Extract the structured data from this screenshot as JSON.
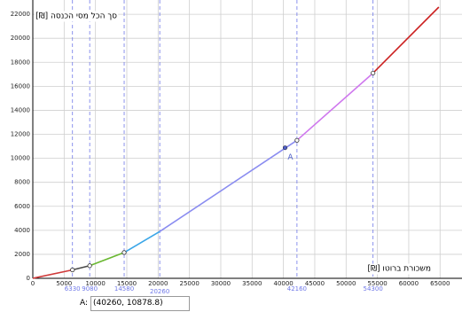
{
  "chart_data": {
    "type": "line",
    "ylabel": "סך הכל מסי הכנסה [₪]",
    "xlabel": "משכורת ברוטו [₪]",
    "xlim": [
      0,
      68500
    ],
    "ylim": [
      0,
      22600
    ],
    "xticks": [
      0,
      5000,
      10000,
      15000,
      20000,
      25000,
      30000,
      35000,
      40000,
      45000,
      50000,
      55000,
      60000,
      65000
    ],
    "yticks": [
      0,
      2000,
      4000,
      6000,
      8000,
      10000,
      12000,
      14000,
      16000,
      18000,
      20000,
      22000
    ],
    "grid": true,
    "series": [
      {
        "color": "#d03a3a",
        "x": [
          0,
          6330
        ],
        "values": [
          0,
          700
        ],
        "start_marker": false
      },
      {
        "color": "#4a4a4a",
        "x": [
          6330,
          9080
        ],
        "values": [
          700,
          1050
        ],
        "start_marker": true
      },
      {
        "color": "#6ab832",
        "x": [
          9080,
          14580
        ],
        "values": [
          1050,
          2150
        ],
        "start_marker": true
      },
      {
        "color": "#3aa6e8",
        "x": [
          14580,
          20260
        ],
        "values": [
          2150,
          3900
        ],
        "start_marker": true
      },
      {
        "color": "#8a8cf0",
        "x": [
          20260,
          42160
        ],
        "values": [
          3900,
          11500
        ],
        "start_marker": false
      },
      {
        "color": "#cf78ee",
        "x": [
          42160,
          54300
        ],
        "values": [
          11500,
          17100
        ],
        "start_marker": true
      },
      {
        "color": "#cc2222",
        "x": [
          54300,
          64800
        ],
        "values": [
          17100,
          22600
        ],
        "start_marker": true
      }
    ],
    "markers": [
      6330,
      9080,
      14580,
      20260,
      42160,
      54300
    ],
    "marker_color": "#6f78e8",
    "point": {
      "label": "A",
      "x": 40260,
      "y": 10878.8,
      "color": "#4f5fc8"
    },
    "input_box": {
      "label": "A:",
      "text": "(40260, 10878.8)"
    }
  }
}
